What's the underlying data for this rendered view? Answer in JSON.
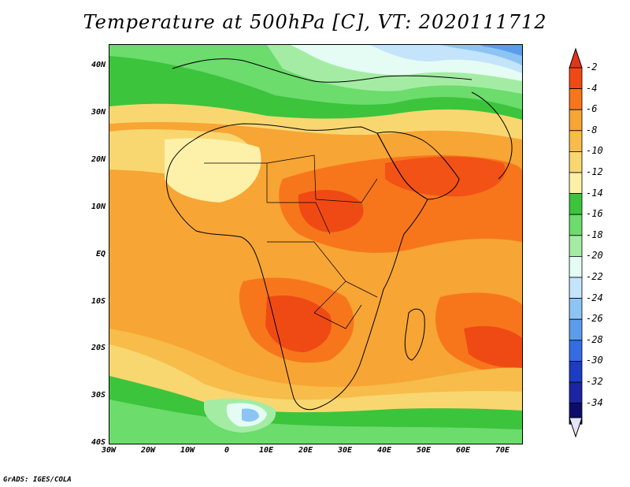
{
  "title": "Temperature at 500hPa [C], VT: 2020111712",
  "footer": "GrADS: IGES/COLA",
  "y_labels": [
    "40N",
    "30N",
    "20N",
    "10N",
    "EQ",
    "10S",
    "20S",
    "30S",
    "40S"
  ],
  "x_labels": [
    "30W",
    "20W",
    "10W",
    "0",
    "10E",
    "20E",
    "30E",
    "40E",
    "50E",
    "60E",
    "70E"
  ],
  "colorbar": {
    "labels": [
      "-2",
      "-4",
      "-6",
      "-8",
      "-10",
      "-12",
      "-14",
      "-16",
      "-18",
      "-20",
      "-22",
      "-24",
      "-26",
      "-28",
      "-30",
      "-32",
      "-34"
    ],
    "colors": [
      "#f04a14",
      "#f7761c",
      "#f7a534",
      "#f7bc4a",
      "#f9d770",
      "#fdf0a8",
      "#3cc43c",
      "#6cdc6c",
      "#a4eca4",
      "#e4fcf4",
      "#c4e4fc",
      "#8cc4f4",
      "#5c9cec",
      "#346ce4",
      "#1c3cc4",
      "#1c24a4",
      "#0c0c6c"
    ],
    "top_arrow_color": "#e4341c",
    "bottom_arrow_color": "#e4e4fc"
  }
}
